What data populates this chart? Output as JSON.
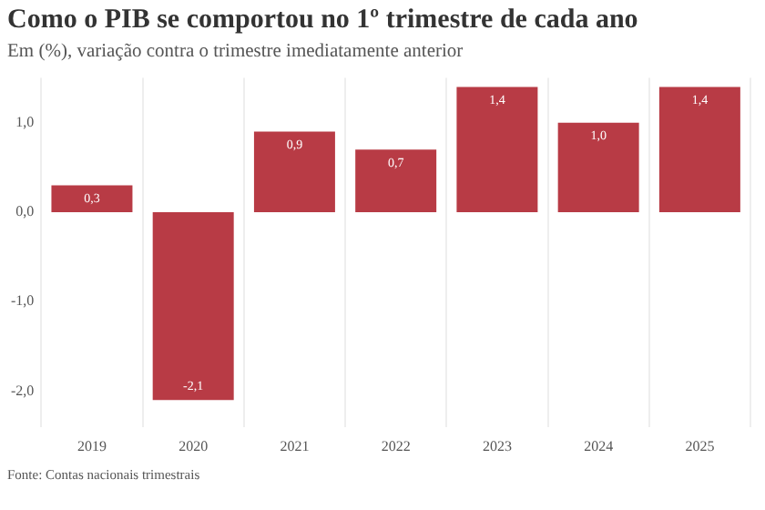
{
  "chart_data": {
    "type": "bar",
    "title": "Como o PIB se comportou no 1º trimestre de cada ano",
    "subtitle": "Em (%), variação contra o trimestre imediatamente anterior",
    "categories": [
      "2019",
      "2020",
      "2021",
      "2022",
      "2023",
      "2024",
      "2025"
    ],
    "values": [
      0.3,
      -2.1,
      0.9,
      0.7,
      1.4,
      1.0,
      1.4
    ],
    "value_labels": [
      "0,3",
      "-2,1",
      "0,9",
      "0,7",
      "1,4",
      "1,0",
      "1,4"
    ],
    "color": "#b83b45",
    "ylim": [
      -2.4,
      1.5
    ],
    "yticks": [
      {
        "value": -2,
        "label": "-2,0"
      },
      {
        "value": -1,
        "label": "-1,0"
      },
      {
        "value": 0,
        "label": "0,0"
      },
      {
        "value": 1,
        "label": "1,0"
      }
    ],
    "grid": "x",
    "annotations": [
      "Fonte: Contas nacionais trimestrais"
    ]
  }
}
